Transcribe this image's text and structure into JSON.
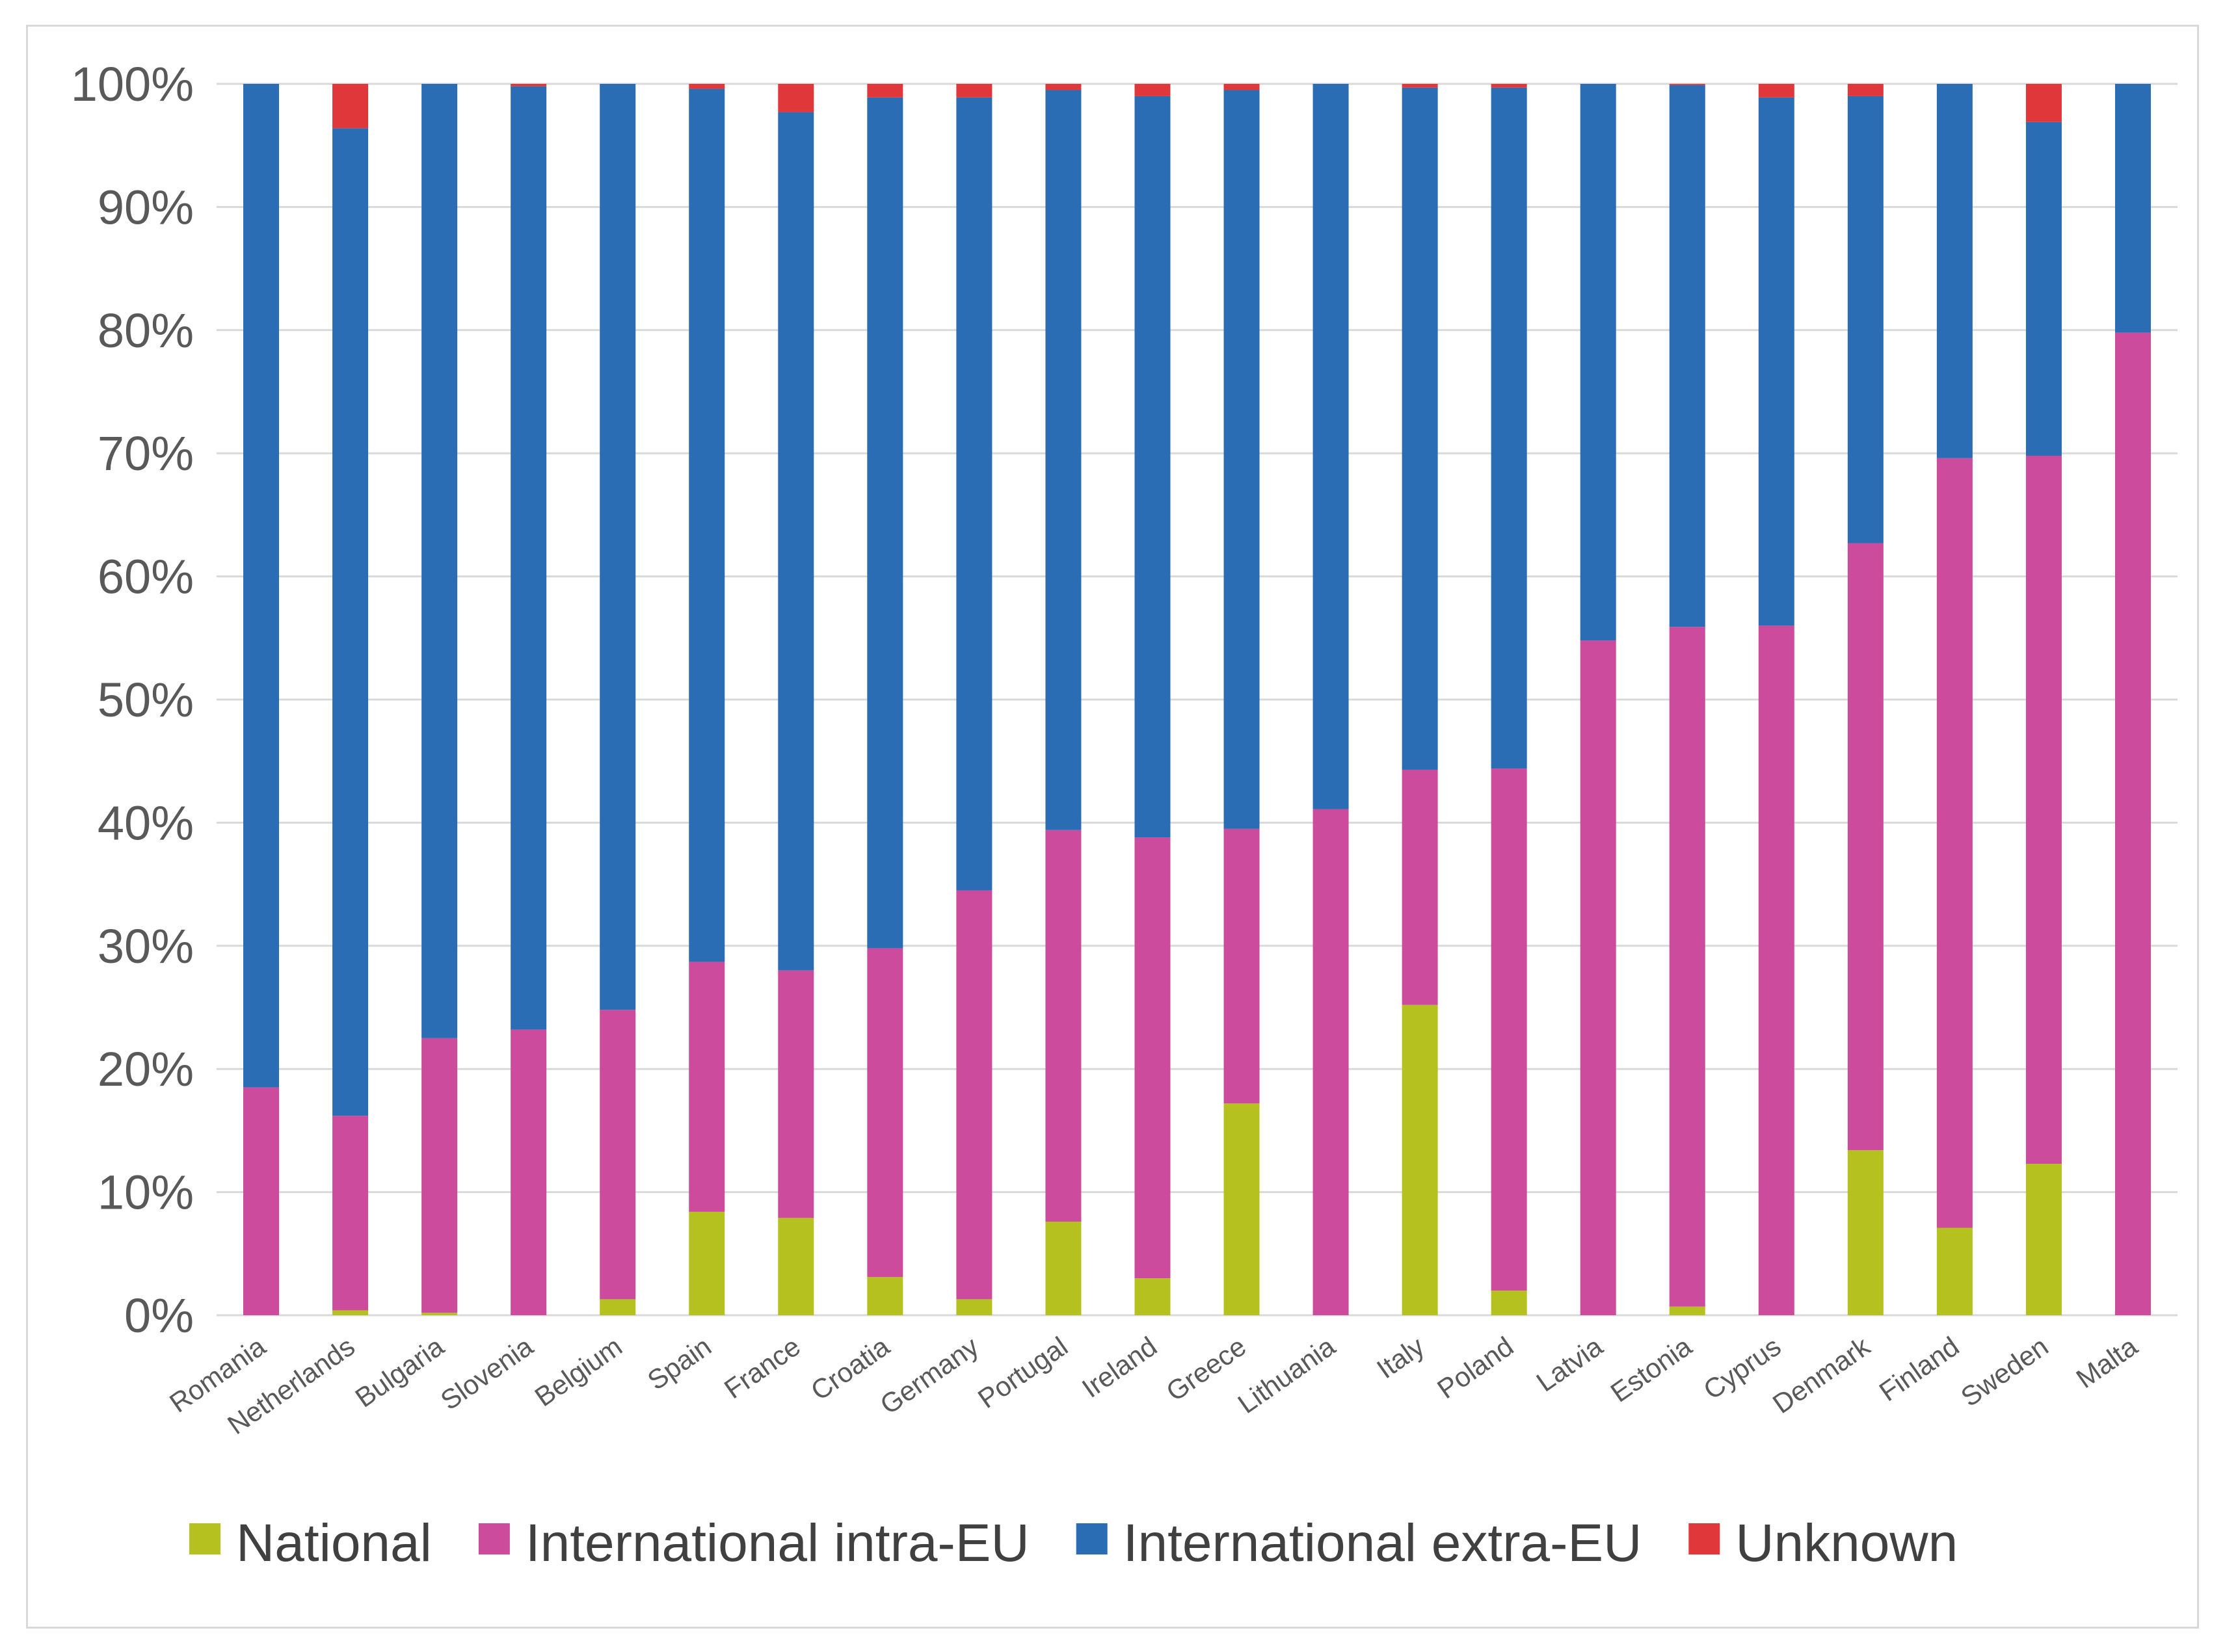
{
  "chart_data": {
    "type": "bar",
    "stacked": true,
    "title": "",
    "xlabel": "",
    "ylabel": "",
    "ylim": [
      0,
      100
    ],
    "ytick_step": 10,
    "ytick_suffix": "%",
    "grid": true,
    "legend_position": "bottom",
    "categories": [
      "Romania",
      "Netherlands",
      "Bulgaria",
      "Slovenia",
      "Belgium",
      "Spain",
      "France",
      "Croatia",
      "Germany",
      "Portugal",
      "Ireland",
      "Greece",
      "Lithuania",
      "Italy",
      "Poland",
      "Latvia",
      "Estonia",
      "Cyprus",
      "Denmark",
      "Finland",
      "Sweden",
      "Malta"
    ],
    "series": [
      {
        "name": "National",
        "color": "#b5c11e",
        "values": [
          0,
          0.4,
          0.2,
          0,
          1.3,
          8.4,
          7.9,
          3.1,
          1.3,
          7.6,
          3.0,
          17.2,
          0,
          25.2,
          2.0,
          0,
          0.7,
          0,
          13.4,
          7.1,
          12.3,
          0
        ]
      },
      {
        "name": "International intra-EU",
        "color": "#cc4b9c",
        "values": [
          18.5,
          15.8,
          22.3,
          23.2,
          23.5,
          20.3,
          20.1,
          26.7,
          33.2,
          31.8,
          35.8,
          22.3,
          41.1,
          19.1,
          42.4,
          54.8,
          55.2,
          56.0,
          49.3,
          62.5,
          57.5,
          79.8
        ]
      },
      {
        "name": "International extra-EU",
        "color": "#2a6db5",
        "values": [
          81.5,
          80.2,
          77.5,
          76.6,
          75.2,
          70.9,
          69.7,
          69.1,
          64.4,
          60.1,
          60.2,
          60.0,
          58.9,
          55.4,
          55.3,
          45.2,
          44.0,
          42.9,
          36.3,
          30.4,
          27.1,
          20.2
        ]
      },
      {
        "name": "Unknown",
        "color": "#e0373b",
        "values": [
          0,
          3.6,
          0,
          0.2,
          0,
          0.4,
          2.3,
          1.1,
          1.1,
          0.5,
          1.0,
          0.5,
          0,
          0.3,
          0.3,
          0,
          0.1,
          1.1,
          1.0,
          0,
          3.1,
          0
        ]
      }
    ]
  }
}
